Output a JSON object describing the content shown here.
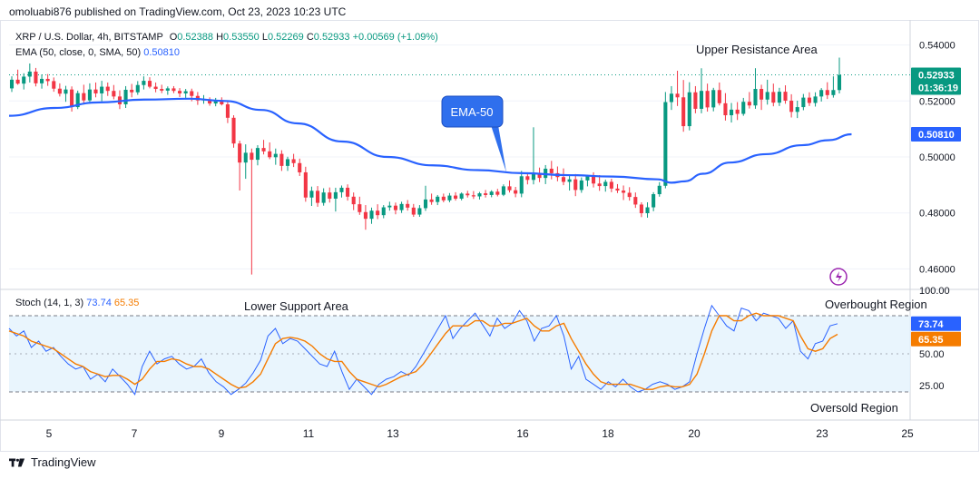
{
  "header": {
    "text": "omoluabi876 published on TradingView.com, Oct 23, 2023 10:23 UTC"
  },
  "legend": {
    "symbol": "XRP / U.S. Dollar, 4h, BITSTAMP",
    "o_label": "O",
    "o": "0.52388",
    "h_label": "H",
    "h": "0.53550",
    "l_label": "L",
    "l": "0.52269",
    "c_label": "C",
    "c": "0.52933",
    "change": "+0.00569 (+1.09%)",
    "ema_label": "EMA (50, close, 0, SMA, 50)",
    "ema_value": "0.50810",
    "stoch_label": "Stoch (14, 1, 3)",
    "stoch_k": "73.74",
    "stoch_d": "65.35"
  },
  "annotations": {
    "upper_resistance": "Upper Resistance Area",
    "ema_callout": "EMA-50",
    "lower_support": "Lower Support Area",
    "overbought": "Overbought Region",
    "oversold": "Oversold Region"
  },
  "badges": {
    "price": "0.52933",
    "countdown": "01:36:19",
    "ema": "0.50810",
    "stoch_k": "73.74",
    "stoch_d": "65.35"
  },
  "footer": {
    "brand": "TradingView"
  },
  "colors": {
    "up": "#089981",
    "down": "#f23645",
    "ema": "#2962ff",
    "stoch_k": "#2962ff",
    "stoch_d": "#f57c00",
    "callout_bg": "#2f6fed",
    "band_fill": "#e3f2fd",
    "dashed": "#787b86"
  },
  "chart_data": [
    {
      "type": "candlestick",
      "title": "XRP / U.S. Dollar, 4h, BITSTAMP",
      "x_ticks": [
        "5",
        "7",
        "9",
        "11",
        "13",
        "16",
        "18",
        "20",
        "23",
        "25"
      ],
      "y_ticks": [
        "0.54000",
        "0.52000",
        "0.50000",
        "0.48000",
        "0.46000"
      ],
      "ylim": [
        0.453,
        0.547
      ],
      "last_price": 0.52933,
      "candles": [
        [
          0.5245,
          0.5288,
          0.5232,
          0.5276
        ],
        [
          0.5276,
          0.5312,
          0.5258,
          0.5262
        ],
        [
          0.5262,
          0.5299,
          0.5241,
          0.5287
        ],
        [
          0.5287,
          0.5334,
          0.5266,
          0.5305
        ],
        [
          0.5305,
          0.5318,
          0.5252,
          0.5263
        ],
        [
          0.5263,
          0.5295,
          0.5244,
          0.5279
        ],
        [
          0.5279,
          0.5296,
          0.5254,
          0.5271
        ],
        [
          0.5271,
          0.5284,
          0.5233,
          0.5244
        ],
        [
          0.5244,
          0.5263,
          0.5216,
          0.5226
        ],
        [
          0.5226,
          0.5254,
          0.5197,
          0.5241
        ],
        [
          0.5241,
          0.5252,
          0.5162,
          0.5178
        ],
        [
          0.5178,
          0.5237,
          0.5171,
          0.5228
        ],
        [
          0.5228,
          0.5258,
          0.5191,
          0.5202
        ],
        [
          0.5202,
          0.5263,
          0.519,
          0.5241
        ],
        [
          0.5241,
          0.5266,
          0.5213,
          0.5227
        ],
        [
          0.5227,
          0.5272,
          0.5199,
          0.5251
        ],
        [
          0.5251,
          0.5266,
          0.5218,
          0.5236
        ],
        [
          0.5236,
          0.5257,
          0.5206,
          0.5216
        ],
        [
          0.5216,
          0.5238,
          0.5171,
          0.5188
        ],
        [
          0.5188,
          0.5253,
          0.5175,
          0.524
        ],
        [
          0.524,
          0.5261,
          0.5213,
          0.5231
        ],
        [
          0.5231,
          0.5271,
          0.5222,
          0.5257
        ],
        [
          0.5257,
          0.5288,
          0.5241,
          0.5272
        ],
        [
          0.5272,
          0.5285,
          0.5245,
          0.5251
        ],
        [
          0.5251,
          0.5266,
          0.5231,
          0.5243
        ],
        [
          0.5243,
          0.5258,
          0.5228,
          0.5237
        ],
        [
          0.5237,
          0.5252,
          0.5222,
          0.5245
        ],
        [
          0.5245,
          0.5253,
          0.5228,
          0.5236
        ],
        [
          0.5236,
          0.5246,
          0.5214,
          0.5227
        ],
        [
          0.5227,
          0.5243,
          0.5211,
          0.5235
        ],
        [
          0.5235,
          0.5244,
          0.5199,
          0.5218
        ],
        [
          0.5218,
          0.5232,
          0.5186,
          0.5202
        ],
        [
          0.5202,
          0.5221,
          0.519,
          0.5206
        ],
        [
          0.5206,
          0.5213,
          0.5183,
          0.5191
        ],
        [
          0.5191,
          0.5211,
          0.5181,
          0.5203
        ],
        [
          0.5203,
          0.5213,
          0.5184,
          0.5188
        ],
        [
          0.5188,
          0.5196,
          0.5121,
          0.514
        ],
        [
          0.514,
          0.5149,
          0.5033,
          0.5048
        ],
        [
          0.5048,
          0.5058,
          0.488,
          0.498
        ],
        [
          0.498,
          0.5045,
          0.4922,
          0.5015
        ],
        [
          0.5015,
          0.503,
          0.458,
          0.499
        ],
        [
          0.499,
          0.5042,
          0.497,
          0.5032
        ],
        [
          0.5032,
          0.5061,
          0.5009,
          0.502
        ],
        [
          0.502,
          0.5052,
          0.4992,
          0.4999
        ],
        [
          0.4999,
          0.503,
          0.4972,
          0.5011
        ],
        [
          0.5011,
          0.5024,
          0.495,
          0.4968
        ],
        [
          0.4968,
          0.5001,
          0.495,
          0.4992
        ],
        [
          0.4992,
          0.5011,
          0.4964,
          0.4978
        ],
        [
          0.4978,
          0.4994,
          0.4932,
          0.4945
        ],
        [
          0.4945,
          0.4965,
          0.484,
          0.4855
        ],
        [
          0.4855,
          0.4894,
          0.4825,
          0.4879
        ],
        [
          0.4879,
          0.4896,
          0.4822,
          0.4836
        ],
        [
          0.4836,
          0.4888,
          0.4826,
          0.4873
        ],
        [
          0.4873,
          0.4891,
          0.4837,
          0.4851
        ],
        [
          0.4851,
          0.489,
          0.4805,
          0.4874
        ],
        [
          0.4874,
          0.4898,
          0.4855,
          0.489
        ],
        [
          0.489,
          0.4902,
          0.4844,
          0.4858
        ],
        [
          0.4858,
          0.4873,
          0.481,
          0.4831
        ],
        [
          0.4831,
          0.4858,
          0.4793,
          0.4803
        ],
        [
          0.4803,
          0.4828,
          0.474,
          0.4779
        ],
        [
          0.4779,
          0.4819,
          0.4761,
          0.4808
        ],
        [
          0.4808,
          0.4831,
          0.4778,
          0.4792
        ],
        [
          0.4792,
          0.4828,
          0.4781,
          0.482
        ],
        [
          0.482,
          0.484,
          0.4808,
          0.4826
        ],
        [
          0.4826,
          0.4837,
          0.4795,
          0.481
        ],
        [
          0.481,
          0.484,
          0.48,
          0.4832
        ],
        [
          0.4832,
          0.4846,
          0.4808,
          0.4819
        ],
        [
          0.4819,
          0.4832,
          0.4786,
          0.4794
        ],
        [
          0.4794,
          0.4828,
          0.4786,
          0.4817
        ],
        [
          0.4817,
          0.4897,
          0.4807,
          0.4848
        ],
        [
          0.4848,
          0.4869,
          0.4829,
          0.4839
        ],
        [
          0.4839,
          0.4864,
          0.4828,
          0.4858
        ],
        [
          0.4858,
          0.4869,
          0.4838,
          0.4845
        ],
        [
          0.4845,
          0.4871,
          0.4838,
          0.4862
        ],
        [
          0.4862,
          0.4874,
          0.4844,
          0.4851
        ],
        [
          0.4851,
          0.4873,
          0.4845,
          0.4869
        ],
        [
          0.4869,
          0.4879,
          0.4855,
          0.4863
        ],
        [
          0.4863,
          0.4878,
          0.485,
          0.4859
        ],
        [
          0.4859,
          0.4875,
          0.4848,
          0.487
        ],
        [
          0.487,
          0.4882,
          0.4855,
          0.4864
        ],
        [
          0.4864,
          0.4881,
          0.4856,
          0.4876
        ],
        [
          0.4876,
          0.4886,
          0.4859,
          0.4865
        ],
        [
          0.4865,
          0.4902,
          0.486,
          0.4895
        ],
        [
          0.4895,
          0.4916,
          0.4873,
          0.4881
        ],
        [
          0.4881,
          0.4893,
          0.4856,
          0.4869
        ],
        [
          0.4869,
          0.495,
          0.4856,
          0.4931
        ],
        [
          0.4931,
          0.4945,
          0.4902,
          0.4918
        ],
        [
          0.4918,
          0.5106,
          0.4902,
          0.4943
        ],
        [
          0.4943,
          0.4962,
          0.491,
          0.4925
        ],
        [
          0.4925,
          0.4971,
          0.4903,
          0.4958
        ],
        [
          0.4958,
          0.4986,
          0.492,
          0.4942
        ],
        [
          0.4942,
          0.4966,
          0.4913,
          0.4928
        ],
        [
          0.4928,
          0.4959,
          0.4899,
          0.4911
        ],
        [
          0.4911,
          0.4936,
          0.488,
          0.492
        ],
        [
          0.492,
          0.4939,
          0.486,
          0.4882
        ],
        [
          0.4882,
          0.4927,
          0.4872,
          0.4916
        ],
        [
          0.4916,
          0.4936,
          0.4895,
          0.4932
        ],
        [
          0.4932,
          0.4945,
          0.4891,
          0.4905
        ],
        [
          0.4905,
          0.4935,
          0.4879,
          0.4896
        ],
        [
          0.4896,
          0.4919,
          0.4876,
          0.4911
        ],
        [
          0.4911,
          0.4922,
          0.4874,
          0.4887
        ],
        [
          0.4887,
          0.4903,
          0.4871,
          0.488
        ],
        [
          0.488,
          0.4898,
          0.4846,
          0.4872
        ],
        [
          0.4872,
          0.4892,
          0.4844,
          0.4857
        ],
        [
          0.4857,
          0.4873,
          0.4818,
          0.483
        ],
        [
          0.483,
          0.4838,
          0.4785,
          0.4799
        ],
        [
          0.4799,
          0.4838,
          0.4783,
          0.482
        ],
        [
          0.482,
          0.4874,
          0.4806,
          0.4867
        ],
        [
          0.4867,
          0.491,
          0.4858,
          0.4897
        ],
        [
          0.4897,
          0.5232,
          0.4888,
          0.5196
        ],
        [
          0.5196,
          0.5253,
          0.5168,
          0.5226
        ],
        [
          0.5226,
          0.5308,
          0.5182,
          0.5213
        ],
        [
          0.5213,
          0.5275,
          0.509,
          0.511
        ],
        [
          0.511,
          0.5267,
          0.5095,
          0.5231
        ],
        [
          0.5231,
          0.5253,
          0.5156,
          0.5172
        ],
        [
          0.5172,
          0.5317,
          0.5156,
          0.5236
        ],
        [
          0.5236,
          0.5262,
          0.5162,
          0.5177
        ],
        [
          0.5177,
          0.5247,
          0.5163,
          0.5239
        ],
        [
          0.5239,
          0.5266,
          0.5184,
          0.5192
        ],
        [
          0.5192,
          0.5228,
          0.513,
          0.5149
        ],
        [
          0.5149,
          0.5193,
          0.5123,
          0.5169
        ],
        [
          0.5169,
          0.5196,
          0.5132,
          0.5154
        ],
        [
          0.5154,
          0.5211,
          0.5147,
          0.5197
        ],
        [
          0.5197,
          0.5232,
          0.5173,
          0.5184
        ],
        [
          0.5184,
          0.5317,
          0.5172,
          0.5243
        ],
        [
          0.5243,
          0.5258,
          0.5168,
          0.5205
        ],
        [
          0.5205,
          0.5276,
          0.5187,
          0.5232
        ],
        [
          0.5232,
          0.5262,
          0.5181,
          0.5194
        ],
        [
          0.5194,
          0.5247,
          0.5182,
          0.5233
        ],
        [
          0.5233,
          0.5256,
          0.519,
          0.5201
        ],
        [
          0.5201,
          0.5224,
          0.5141,
          0.5161
        ],
        [
          0.5161,
          0.5201,
          0.5139,
          0.5178
        ],
        [
          0.5178,
          0.5225,
          0.5167,
          0.5212
        ],
        [
          0.5212,
          0.5231,
          0.5182,
          0.5193
        ],
        [
          0.5193,
          0.5231,
          0.518,
          0.5216
        ],
        [
          0.5216,
          0.5246,
          0.5198,
          0.5239
        ],
        [
          0.5239,
          0.5267,
          0.5207,
          0.5221
        ],
        [
          0.5221,
          0.5288,
          0.5212,
          0.5239
        ],
        [
          0.5239,
          0.5355,
          0.5227,
          0.5293
        ]
      ],
      "ema50": [
        [
          0,
          0.5147
        ],
        [
          0.05,
          0.5175
        ],
        [
          0.1,
          0.5195
        ],
        [
          0.15,
          0.5205
        ],
        [
          0.2,
          0.5208
        ],
        [
          0.24,
          0.52
        ],
        [
          0.28,
          0.5168
        ],
        [
          0.32,
          0.512
        ],
        [
          0.37,
          0.5055
        ],
        [
          0.42,
          0.5
        ],
        [
          0.47,
          0.497
        ],
        [
          0.52,
          0.4953
        ],
        [
          0.57,
          0.4942
        ],
        [
          0.62,
          0.4935
        ],
        [
          0.67,
          0.493
        ],
        [
          0.72,
          0.492
        ],
        [
          0.735,
          0.4908
        ],
        [
          0.75,
          0.4913
        ],
        [
          0.77,
          0.494
        ],
        [
          0.8,
          0.498
        ],
        [
          0.84,
          0.501
        ],
        [
          0.88,
          0.5042
        ],
        [
          0.91,
          0.506
        ],
        [
          0.935,
          0.5081
        ]
      ]
    },
    {
      "type": "line",
      "title": "Stoch (14, 1, 3)",
      "y_ticks": [
        "100.00",
        "50.00",
        "25.00"
      ],
      "ylim": [
        0,
        100
      ],
      "levels": [
        20,
        80
      ],
      "series": [
        {
          "name": "73.74",
          "values": [
            70,
            64,
            68,
            55,
            60,
            52,
            55,
            48,
            42,
            38,
            40,
            30,
            34,
            28,
            38,
            32,
            26,
            18,
            40,
            52,
            42,
            46,
            48,
            42,
            38,
            40,
            46,
            35,
            28,
            24,
            18,
            22,
            27,
            35,
            45,
            64,
            70,
            58,
            62,
            60,
            54,
            48,
            42,
            40,
            52,
            36,
            22,
            30,
            24,
            18,
            26,
            30,
            32,
            36,
            33,
            40,
            50,
            60,
            70,
            80,
            62,
            70,
            76,
            82,
            73,
            64,
            78,
            70,
            74,
            84,
            76,
            60,
            70,
            72,
            80,
            64,
            38,
            48,
            30,
            26,
            22,
            28,
            24,
            30,
            24,
            20,
            22,
            26,
            28,
            26,
            22,
            24,
            28,
            50,
            70,
            88,
            80,
            72,
            68,
            86,
            84,
            76,
            82,
            80,
            78,
            70,
            76,
            52,
            46,
            58,
            60,
            72,
            73.74
          ]
        },
        {
          "name": "65.35",
          "values": [
            68,
            66,
            64,
            60,
            58,
            56,
            54,
            50,
            46,
            42,
            40,
            36,
            34,
            32,
            33,
            33,
            30,
            26,
            30,
            38,
            44,
            44,
            46,
            45,
            42,
            40,
            40,
            38,
            34,
            30,
            26,
            23,
            24,
            28,
            34,
            46,
            58,
            62,
            63,
            62,
            60,
            56,
            50,
            46,
            44,
            44,
            36,
            30,
            28,
            26,
            24,
            26,
            29,
            32,
            34,
            36,
            42,
            50,
            58,
            66,
            72,
            72,
            72,
            76,
            76,
            72,
            72,
            74,
            74,
            76,
            78,
            72,
            68,
            68,
            72,
            74,
            62,
            52,
            42,
            34,
            28,
            26,
            26,
            26,
            26,
            24,
            22,
            22,
            24,
            25,
            24,
            24,
            26,
            34,
            50,
            68,
            80,
            80,
            76,
            76,
            80,
            82,
            80,
            80,
            80,
            78,
            76,
            64,
            54,
            52,
            54,
            62,
            65.35
          ]
        }
      ]
    }
  ]
}
